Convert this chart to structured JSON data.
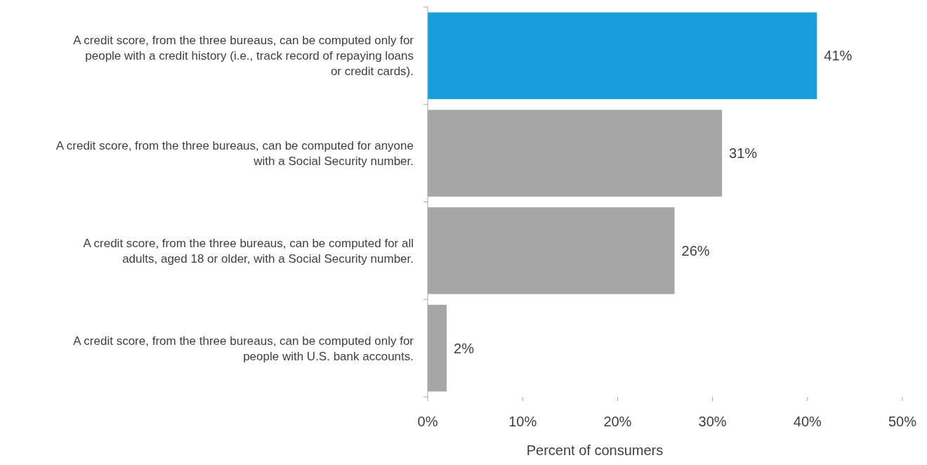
{
  "chart_data": {
    "type": "bar",
    "orientation": "horizontal",
    "xlabel": "Percent of consumers",
    "categories": [
      "A credit score, from the three bureaus, can be computed only for people with a credit history (i.e., track record of repaying loans or credit cards).",
      "A credit score, from the three bureaus, can be computed for anyone with a Social Security number.",
      "A credit score, from the three bureaus, can be computed for all adults, aged 18 or older, with a Social Security number.",
      "A credit score, from the three bureaus, can be computed only for people with U.S. bank accounts."
    ],
    "values": [
      41,
      31,
      26,
      2
    ],
    "value_labels": [
      "41%",
      "31%",
      "26%",
      "2%"
    ],
    "colors": [
      "#189fdb",
      "#a6a6a6",
      "#a6a6a6",
      "#a6a6a6"
    ],
    "xlim": [
      0,
      50
    ],
    "xticks": [
      {
        "value": 0,
        "label": "0%"
      },
      {
        "value": 10,
        "label": "10%"
      },
      {
        "value": 20,
        "label": "20%"
      },
      {
        "value": 30,
        "label": "30%"
      },
      {
        "value": 40,
        "label": "40%"
      },
      {
        "value": 50,
        "label": "50%"
      }
    ],
    "grid": false
  }
}
